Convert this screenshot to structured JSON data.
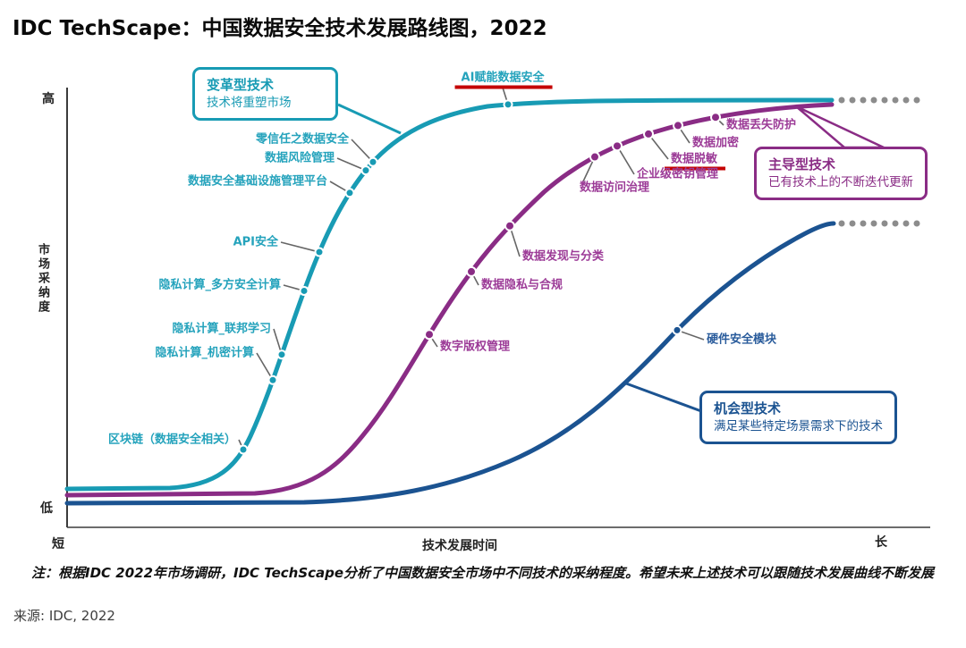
{
  "title": "IDC TechScape：中国数据安全技术发展路线图，2022",
  "axes": {
    "y_high": "高",
    "y_low": "低",
    "y_label": "市场采纳度",
    "x_short": "短",
    "x_label": "技术发展时间",
    "x_long": "长"
  },
  "boxes": {
    "transformational": {
      "title": "变革型技术",
      "subtitle": "技术将重塑市场"
    },
    "dominant": {
      "title": "主导型技术",
      "subtitle": "已有技术上的不断迭代更新"
    },
    "opportunistic": {
      "title": "机会型技术",
      "subtitle": "满足某些特定场景需求下的技术"
    }
  },
  "colors": {
    "teal": "#189BB4",
    "purple": "#8A2C85",
    "blue": "#1B5391",
    "red_underline": "#C40000",
    "dots_gray": "#8C8C8C",
    "connector_gray": "#666666"
  },
  "note": "注：根据IDC 2022年市场调研，IDC TechScape分析了中国数据安全市场中不同技术的采纳程度。希望未来上述技术可以跟随技术发展曲线不断发展",
  "source": "来源: IDC, 2022",
  "plot": {
    "ghost_dot_rows": [
      112,
      250
    ],
    "ghost_dot_start_x": 941,
    "ghost_dot_step": 12,
    "ghost_dot_count": 8,
    "series": [
      {
        "id": "transformational",
        "path": "path-teal",
        "color": "#189BB4",
        "text_class": "c-teal",
        "dot_r": 4.5,
        "items": [
          {
            "label": "AI赋能数据安全",
            "x": 568,
            "lx": 562,
            "ly": 87,
            "align": "center",
            "u": true
          },
          {
            "label": "零信任之数据安全",
            "x": 417,
            "lx": 390,
            "ly": 156,
            "align": "right"
          },
          {
            "label": "数据风险管理",
            "x": 409,
            "lx": 374,
            "ly": 177,
            "align": "right"
          },
          {
            "label": "数据安全基础设施管理平台",
            "x": 391,
            "lx": 366,
            "ly": 203,
            "align": "right"
          },
          {
            "label": "API安全",
            "x": 357,
            "lx": 311,
            "ly": 271,
            "align": "right"
          },
          {
            "label": "隐私计算_多方安全计算",
            "x": 340,
            "lx": 314,
            "ly": 319,
            "align": "right"
          },
          {
            "label": "隐私计算_联邦学习",
            "x": 315,
            "lx": 303,
            "ly": 368,
            "align": "right"
          },
          {
            "label": "隐私计算_机密计算",
            "x": 305,
            "lx": 284,
            "ly": 395,
            "align": "right"
          },
          {
            "label": "区块链（数据安全相关）",
            "x": 272,
            "lx": 264,
            "ly": 492,
            "align": "right"
          }
        ]
      },
      {
        "id": "dominant",
        "path": "path-purple",
        "color": "#8A2C85",
        "text_class": "c-purple",
        "dot_r": 5,
        "items": [
          {
            "label": "数据丢失防护",
            "x": 800,
            "lx": 812,
            "ly": 140,
            "align": "left"
          },
          {
            "label": "数据加密",
            "x": 758,
            "lx": 774,
            "ly": 160,
            "align": "left"
          },
          {
            "label": "数据脱敏",
            "x": 725,
            "lx": 750,
            "ly": 178,
            "align": "left",
            "u": true
          },
          {
            "label": "企业级密钥管理",
            "x": 690,
            "lx": 712,
            "ly": 195,
            "align": "left"
          },
          {
            "label": "数据访问治理",
            "x": 665,
            "lx": 648,
            "ly": 210,
            "align": "left",
            "c": [
              652,
              203
            ]
          },
          {
            "label": "数据发现与分类",
            "x": 570,
            "lx": 584,
            "ly": 287,
            "align": "left"
          },
          {
            "label": "数据隐私与合规",
            "x": 527,
            "lx": 538,
            "ly": 319,
            "align": "left"
          },
          {
            "label": "数字版权管理",
            "x": 480,
            "lx": 492,
            "ly": 388,
            "align": "left"
          }
        ]
      },
      {
        "id": "opportunistic",
        "path": "path-blue",
        "color": "#1B5391",
        "text_class": "c-blue",
        "dot_r": 4.5,
        "items": [
          {
            "label": "硬件安全模块",
            "x": 757,
            "lx": 790,
            "ly": 380,
            "align": "left"
          }
        ]
      }
    ]
  },
  "chart_data": {
    "type": "line",
    "subtype": "technology-adoption-s-curves",
    "title": "IDC TechScape：中国数据安全技术发展路线图，2022",
    "xlabel": "技术发展时间",
    "ylabel": "市场采纳度",
    "x_axis": {
      "min_label": "短",
      "max_label": "长"
    },
    "y_axis": {
      "min_label": "低",
      "max_label": "高"
    },
    "legend_position": "callout-boxes",
    "grid": false,
    "series": [
      {
        "name": "变革型技术",
        "description": "技术将重塑市场",
        "color": "#189BB4",
        "curve": "s-curve",
        "points": [
          {
            "tech": "AI赋能数据安全",
            "time": 0.51,
            "adoption": 0.97,
            "highlighted": true
          },
          {
            "tech": "零信任之数据安全",
            "time": 0.36,
            "adoption": 0.83
          },
          {
            "tech": "数据风险管理",
            "time": 0.35,
            "adoption": 0.81
          },
          {
            "tech": "数据安全基础设施管理平台",
            "time": 0.33,
            "adoption": 0.77
          },
          {
            "tech": "API安全",
            "time": 0.29,
            "adoption": 0.63
          },
          {
            "tech": "隐私计算_多方安全计算",
            "time": 0.28,
            "adoption": 0.55
          },
          {
            "tech": "隐私计算_联邦学习",
            "time": 0.25,
            "adoption": 0.39
          },
          {
            "tech": "隐私计算_机密计算",
            "time": 0.24,
            "adoption": 0.34
          },
          {
            "tech": "区块链（数据安全相关）",
            "time": 0.21,
            "adoption": 0.18
          }
        ]
      },
      {
        "name": "主导型技术",
        "description": "已有技术上的不断迭代更新",
        "color": "#8A2C85",
        "curve": "s-curve",
        "points": [
          {
            "tech": "数据丢失防护",
            "time": 0.76,
            "adoption": 0.94
          },
          {
            "tech": "数据加密",
            "time": 0.71,
            "adoption": 0.92
          },
          {
            "tech": "数据脱敏",
            "time": 0.68,
            "adoption": 0.9,
            "highlighted": true
          },
          {
            "tech": "企业级密钥管理",
            "time": 0.64,
            "adoption": 0.87
          },
          {
            "tech": "数据访问治理",
            "time": 0.61,
            "adoption": 0.85
          },
          {
            "tech": "数据发现与分类",
            "time": 0.52,
            "adoption": 0.68
          },
          {
            "tech": "数据隐私与合规",
            "time": 0.47,
            "adoption": 0.58
          },
          {
            "tech": "数字版权管理",
            "time": 0.42,
            "adoption": 0.44
          }
        ]
      },
      {
        "name": "机会型技术",
        "description": "满足某些特定场景需求下的技术",
        "color": "#1B5391",
        "curve": "s-curve",
        "points": [
          {
            "tech": "硬件安全模块",
            "time": 0.71,
            "adoption": 0.45
          }
        ]
      }
    ],
    "note": "注：根据IDC 2022年市场调研，IDC TechScape分析了中国数据安全市场中不同技术的采纳程度。希望未来上述技术可以跟随技术发展曲线不断发展",
    "source": "来源: IDC, 2022"
  }
}
